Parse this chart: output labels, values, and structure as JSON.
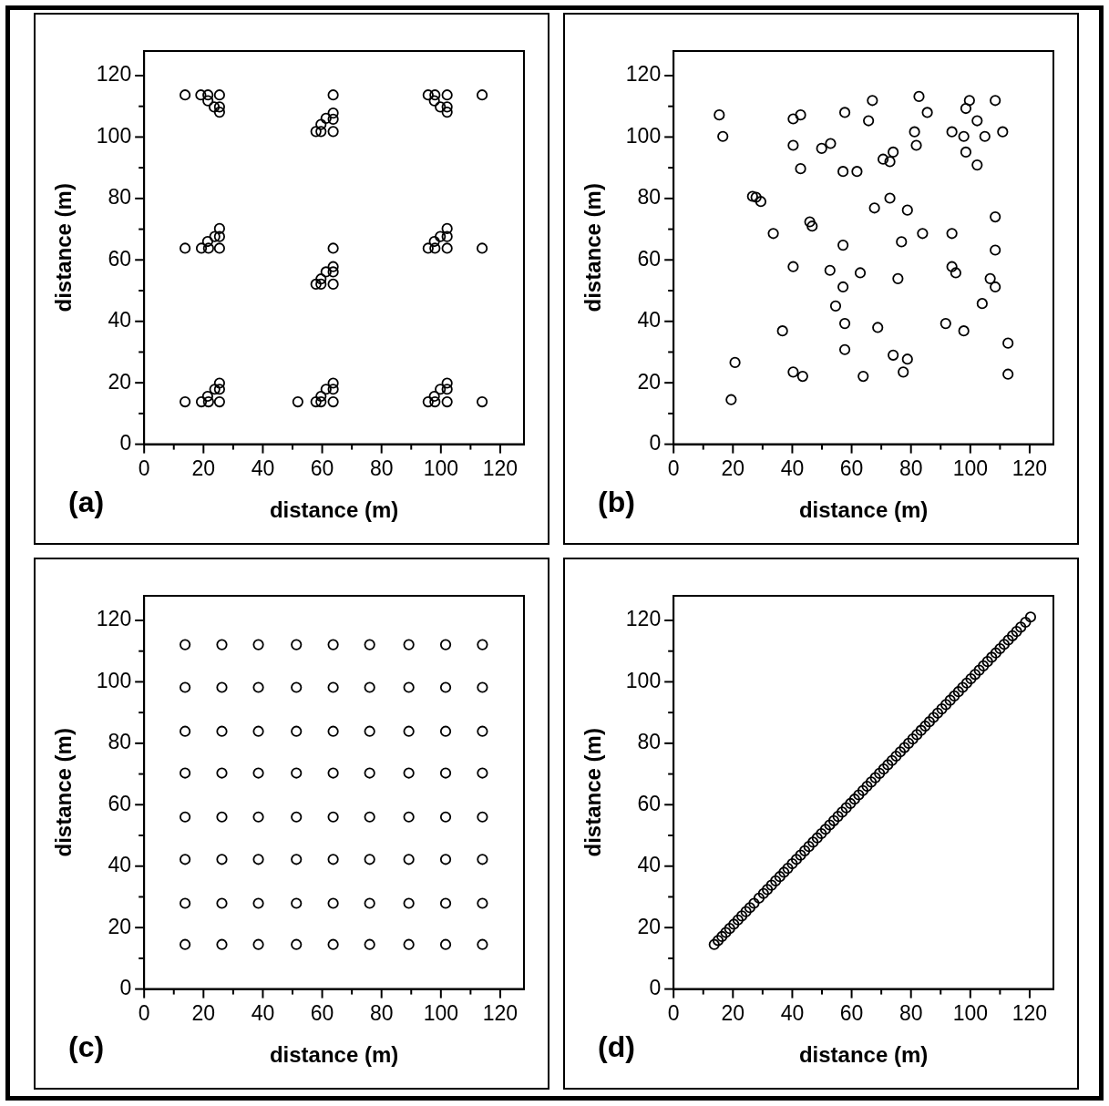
{
  "chart_data": [
    {
      "type": "scatter",
      "xlabel": "distance (m)",
      "ylabel": "distance (m)",
      "annotations": [
        "(a)"
      ],
      "xlim": [
        0,
        128
      ],
      "ylim": [
        0,
        128
      ],
      "marker": "circle",
      "color": "#000000",
      "xticks": [
        0,
        {
          "value": 10,
          "label": null
        },
        20,
        {
          "value": 30,
          "label": null
        },
        40,
        {
          "value": 50,
          "label": null
        },
        60,
        {
          "value": 70,
          "label": null
        },
        80,
        {
          "value": 90,
          "label": null
        },
        100,
        {
          "value": 110,
          "label": null
        },
        120
      ],
      "yticks": [
        0,
        {
          "value": 10,
          "label": null
        },
        20,
        {
          "value": 30,
          "label": null
        },
        40,
        {
          "value": 50,
          "label": null
        },
        60,
        {
          "value": 70,
          "label": null
        },
        80,
        {
          "value": 90,
          "label": null
        },
        100,
        {
          "value": 110,
          "label": null
        },
        120
      ],
      "x": [
        13.8,
        19.1,
        21.5,
        25.4,
        21.5,
        23.6,
        25.4,
        25.4,
        63.7,
        63.7,
        63.7,
        61.3,
        59.6,
        57.9,
        59.6,
        63.7,
        95.7,
        98.0,
        102.1,
        113.9,
        97.8,
        99.8,
        102.1,
        102.1,
        13.8,
        19.3,
        21.7,
        25.4,
        21.4,
        23.8,
        25.4,
        25.4,
        63.7,
        63.7,
        63.7,
        61.3,
        59.6,
        57.9,
        59.6,
        63.7,
        95.7,
        98.0,
        102.1,
        113.9,
        97.8,
        99.8,
        102.1,
        102.1,
        13.8,
        19.3,
        21.7,
        25.4,
        21.4,
        23.8,
        25.4,
        25.4,
        51.8,
        57.9,
        59.6,
        63.7,
        59.6,
        61.3,
        63.7,
        63.7,
        95.7,
        98.0,
        102.1,
        113.9,
        97.8,
        99.8,
        102.1,
        102.1
      ],
      "values": [
        113.7,
        113.7,
        113.7,
        113.7,
        111.8,
        109.8,
        109.8,
        108.1,
        113.7,
        107.8,
        105.8,
        106.1,
        104.1,
        101.8,
        101.8,
        101.8,
        113.7,
        113.7,
        113.7,
        113.7,
        111.8,
        109.8,
        109.8,
        108.1,
        63.8,
        63.8,
        63.8,
        63.8,
        66.0,
        67.6,
        67.6,
        70.2,
        63.8,
        57.8,
        56.1,
        56.1,
        53.8,
        52.1,
        52.1,
        52.1,
        63.8,
        63.8,
        63.8,
        63.8,
        66.0,
        67.6,
        67.6,
        70.2,
        13.8,
        13.8,
        13.8,
        13.8,
        15.6,
        17.9,
        17.9,
        19.9,
        13.8,
        13.8,
        13.8,
        13.8,
        15.6,
        17.9,
        17.9,
        19.9,
        13.8,
        13.8,
        13.8,
        13.8,
        15.6,
        17.9,
        17.9,
        19.9
      ]
    },
    {
      "type": "scatter",
      "xlabel": "distance (m)",
      "ylabel": "distance (m)",
      "annotations": [
        "(b)"
      ],
      "xlim": [
        0,
        128
      ],
      "ylim": [
        0,
        128
      ],
      "marker": "circle",
      "color": "#000000",
      "xticks": [
        0,
        {
          "value": 10,
          "label": null
        },
        20,
        {
          "value": 30,
          "label": null
        },
        40,
        {
          "value": 50,
          "label": null
        },
        60,
        {
          "value": 70,
          "label": null
        },
        80,
        {
          "value": 90,
          "label": null
        },
        100,
        {
          "value": 110,
          "label": null
        },
        120
      ],
      "yticks": [
        0,
        {
          "value": 10,
          "label": null
        },
        20,
        {
          "value": 30,
          "label": null
        },
        40,
        {
          "value": 50,
          "label": null
        },
        60,
        {
          "value": 70,
          "label": null
        },
        80,
        {
          "value": 90,
          "label": null
        },
        100,
        {
          "value": 110,
          "label": null
        },
        120
      ],
      "x": [
        15.4,
        16.6,
        40.3,
        42.8,
        57.7,
        67.0,
        65.7,
        82.7,
        85.5,
        99.7,
        98.5,
        108.4,
        102.3,
        81.2,
        81.8,
        93.8,
        97.8,
        104.9,
        110.9,
        98.5,
        102.3,
        40.3,
        49.9,
        52.9,
        70.6,
        72.9,
        74.0,
        42.8,
        57.1,
        61.8,
        26.6,
        27.8,
        29.4,
        72.9,
        67.7,
        78.8,
        108.4,
        45.9,
        46.7,
        33.6,
        83.9,
        93.8,
        76.8,
        57.1,
        108.4,
        40.3,
        52.7,
        62.9,
        93.8,
        95.1,
        75.6,
        106.7,
        57.1,
        108.4,
        104.0,
        54.6,
        57.7,
        68.8,
        91.7,
        97.8,
        36.7,
        112.7,
        57.7,
        74.0,
        78.8,
        20.7,
        40.3,
        43.5,
        63.9,
        77.4,
        112.7,
        19.4
      ],
      "values": [
        107.2,
        100.2,
        105.9,
        107.2,
        108.0,
        111.9,
        105.3,
        113.2,
        108.0,
        111.9,
        109.3,
        111.9,
        105.3,
        101.7,
        97.3,
        101.7,
        100.2,
        100.2,
        101.7,
        95.1,
        90.9,
        97.3,
        96.3,
        97.9,
        92.8,
        92.0,
        95.1,
        89.7,
        88.8,
        88.8,
        80.7,
        80.4,
        79.0,
        80.1,
        76.9,
        76.2,
        74.0,
        72.4,
        71.0,
        68.6,
        68.6,
        68.6,
        65.9,
        64.8,
        63.2,
        57.8,
        56.6,
        55.8,
        57.8,
        55.8,
        53.9,
        53.9,
        51.2,
        51.2,
        45.8,
        45.0,
        39.3,
        38.0,
        39.3,
        36.9,
        36.9,
        32.9,
        30.8,
        29.0,
        27.7,
        26.6,
        23.5,
        22.1,
        22.1,
        23.5,
        22.8,
        14.5
      ]
    },
    {
      "type": "scatter",
      "xlabel": "distance (m)",
      "ylabel": "distance (m)",
      "annotations": [
        "(c)"
      ],
      "xlim": [
        0,
        128
      ],
      "ylim": [
        0,
        128
      ],
      "marker": "circle",
      "color": "#000000",
      "xticks": [
        0,
        {
          "value": 10,
          "label": null
        },
        20,
        {
          "value": 30,
          "label": null
        },
        40,
        {
          "value": 50,
          "label": null
        },
        60,
        {
          "value": 70,
          "label": null
        },
        80,
        {
          "value": 90,
          "label": null
        },
        100,
        {
          "value": 110,
          "label": null
        },
        120
      ],
      "yticks": [
        0,
        {
          "value": 10,
          "label": null
        },
        20,
        {
          "value": 30,
          "label": null
        },
        40,
        {
          "value": 50,
          "label": null
        },
        60,
        {
          "value": 70,
          "label": null
        },
        80,
        {
          "value": 90,
          "label": null
        },
        100,
        {
          "value": 110,
          "label": null
        },
        120
      ],
      "x": [
        13.8,
        26.2,
        38.5,
        51.3,
        63.7,
        76.0,
        89.2,
        101.6,
        114.0,
        13.8,
        26.2,
        38.5,
        51.3,
        63.7,
        76.0,
        89.2,
        101.6,
        114.0,
        13.8,
        26.2,
        38.5,
        51.3,
        63.7,
        76.0,
        89.2,
        101.6,
        114.0,
        13.8,
        26.2,
        38.5,
        51.3,
        63.7,
        76.0,
        89.2,
        101.6,
        114.0,
        13.8,
        26.2,
        38.5,
        51.3,
        63.7,
        76.0,
        89.2,
        101.6,
        114.0,
        13.8,
        26.2,
        38.5,
        51.3,
        63.7,
        76.0,
        89.2,
        101.6,
        114.0,
        13.8,
        26.2,
        38.5,
        51.3,
        63.7,
        76.0,
        89.2,
        101.6,
        114.0,
        13.8,
        26.2,
        38.5,
        51.3,
        63.7,
        76.0,
        89.2,
        101.6,
        114.0
      ],
      "values": [
        112.1,
        112.1,
        112.1,
        112.1,
        112.1,
        112.1,
        112.1,
        112.1,
        112.1,
        98.2,
        98.2,
        98.2,
        98.2,
        98.2,
        98.2,
        98.2,
        98.2,
        98.2,
        83.9,
        83.9,
        83.9,
        83.9,
        83.9,
        83.9,
        83.9,
        83.9,
        83.9,
        70.3,
        70.3,
        70.3,
        70.3,
        70.3,
        70.3,
        70.3,
        70.3,
        70.3,
        56.0,
        56.0,
        56.0,
        56.0,
        56.0,
        56.0,
        56.0,
        56.0,
        56.0,
        42.2,
        42.2,
        42.2,
        42.2,
        42.2,
        42.2,
        42.2,
        42.2,
        42.2,
        27.9,
        27.9,
        27.9,
        27.9,
        27.9,
        27.9,
        27.9,
        27.9,
        27.9,
        14.5,
        14.5,
        14.5,
        14.5,
        14.5,
        14.5,
        14.5,
        14.5,
        14.5
      ]
    },
    {
      "type": "scatter",
      "xlabel": "distance (m)",
      "ylabel": "distance (m)",
      "annotations": [
        "(d)"
      ],
      "xlim": [
        0,
        128
      ],
      "ylim": [
        0,
        128
      ],
      "marker": "circle",
      "color": "#000000",
      "xticks": [
        0,
        {
          "value": 10,
          "label": null
        },
        20,
        {
          "value": 30,
          "label": null
        },
        40,
        {
          "value": 50,
          "label": null
        },
        60,
        {
          "value": 70,
          "label": null
        },
        80,
        {
          "value": 90,
          "label": null
        },
        100,
        {
          "value": 110,
          "label": null
        },
        120
      ],
      "yticks": [
        0,
        {
          "value": 10,
          "label": null
        },
        20,
        {
          "value": 30,
          "label": null
        },
        40,
        {
          "value": 50,
          "label": null
        },
        60,
        {
          "value": 70,
          "label": null
        },
        80,
        {
          "value": 90,
          "label": null
        },
        100,
        {
          "value": 110,
          "label": null
        },
        120
      ],
      "x": [
        13.7,
        15.0,
        16.3,
        17.6,
        18.9,
        20.3,
        21.7,
        23.0,
        24.4,
        25.7,
        27.1,
        28.8,
        30.3,
        31.6,
        33.0,
        34.4,
        35.8,
        37.2,
        38.5,
        40.0,
        41.4,
        42.8,
        44.2,
        45.6,
        47.0,
        48.4,
        49.8,
        51.2,
        52.6,
        54.0,
        55.4,
        56.8,
        58.2,
        59.6,
        61.0,
        62.4,
        63.8,
        65.2,
        66.6,
        68.0,
        69.4,
        70.8,
        72.2,
        73.6,
        75.0,
        76.4,
        77.8,
        79.2,
        80.6,
        82.0,
        83.4,
        84.8,
        86.2,
        87.6,
        89.0,
        90.4,
        91.8,
        93.2,
        94.6,
        96.0,
        97.4,
        98.8,
        100.2,
        101.6,
        103.0,
        104.4,
        105.8,
        107.2,
        108.6,
        110.0,
        111.4,
        112.8,
        114.2,
        115.6,
        117.0,
        118.6,
        120.3
      ],
      "values": [
        14.5,
        15.8,
        17.1,
        18.4,
        19.7,
        21.1,
        22.5,
        23.8,
        25.2,
        26.5,
        27.9,
        29.6,
        31.1,
        32.4,
        33.8,
        35.2,
        36.6,
        38.0,
        39.3,
        40.8,
        42.2,
        43.6,
        45.0,
        46.4,
        47.8,
        49.2,
        50.6,
        52.0,
        53.4,
        54.8,
        56.2,
        57.6,
        59.0,
        60.4,
        61.8,
        63.2,
        64.6,
        66.0,
        67.4,
        68.8,
        70.2,
        71.6,
        73.0,
        74.4,
        75.8,
        77.2,
        78.6,
        80.0,
        81.4,
        82.8,
        84.2,
        85.6,
        87.0,
        88.4,
        89.8,
        91.2,
        92.6,
        94.0,
        95.4,
        96.8,
        98.2,
        99.6,
        101.0,
        102.4,
        103.8,
        105.2,
        106.6,
        108.0,
        109.4,
        110.8,
        112.2,
        113.6,
        115.0,
        116.4,
        117.8,
        119.4,
        121.1
      ]
    }
  ]
}
